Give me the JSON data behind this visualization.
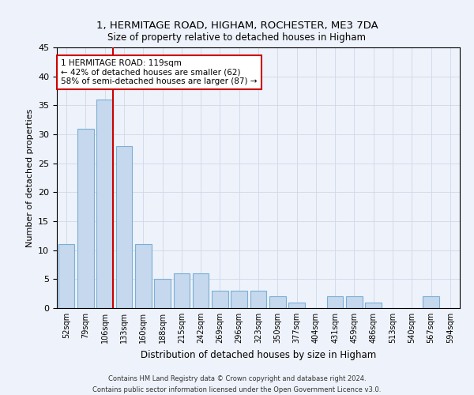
{
  "title": "1, HERMITAGE ROAD, HIGHAM, ROCHESTER, ME3 7DA",
  "subtitle": "Size of property relative to detached houses in Higham",
  "xlabel": "Distribution of detached houses by size in Higham",
  "ylabel": "Number of detached properties",
  "categories": [
    "52sqm",
    "79sqm",
    "106sqm",
    "133sqm",
    "160sqm",
    "188sqm",
    "215sqm",
    "242sqm",
    "269sqm",
    "296sqm",
    "323sqm",
    "350sqm",
    "377sqm",
    "404sqm",
    "431sqm",
    "459sqm",
    "486sqm",
    "513sqm",
    "540sqm",
    "567sqm",
    "594sqm"
  ],
  "values": [
    11,
    31,
    36,
    28,
    11,
    5,
    6,
    6,
    3,
    3,
    3,
    2,
    1,
    0,
    2,
    2,
    1,
    0,
    0,
    2,
    0
  ],
  "bar_color": "#c5d8ee",
  "bar_edge_color": "#7aafd4",
  "ylim": [
    0,
    45
  ],
  "yticks": [
    0,
    5,
    10,
    15,
    20,
    25,
    30,
    35,
    40,
    45
  ],
  "red_line_x": 2.425,
  "annotation_text_line1": "1 HERMITAGE ROAD: 119sqm",
  "annotation_text_line2": "← 42% of detached houses are smaller (62)",
  "annotation_text_line3": "58% of semi-detached houses are larger (87) →",
  "annotation_box_color": "#ffffff",
  "annotation_box_edge_color": "#cc0000",
  "red_line_color": "#cc0000",
  "grid_color": "#d0d8e8",
  "footer_line1": "Contains HM Land Registry data © Crown copyright and database right 2024.",
  "footer_line2": "Contains public sector information licensed under the Open Government Licence v3.0.",
  "background_color": "#eef2fa",
  "axes_background_color": "#eef2fa"
}
